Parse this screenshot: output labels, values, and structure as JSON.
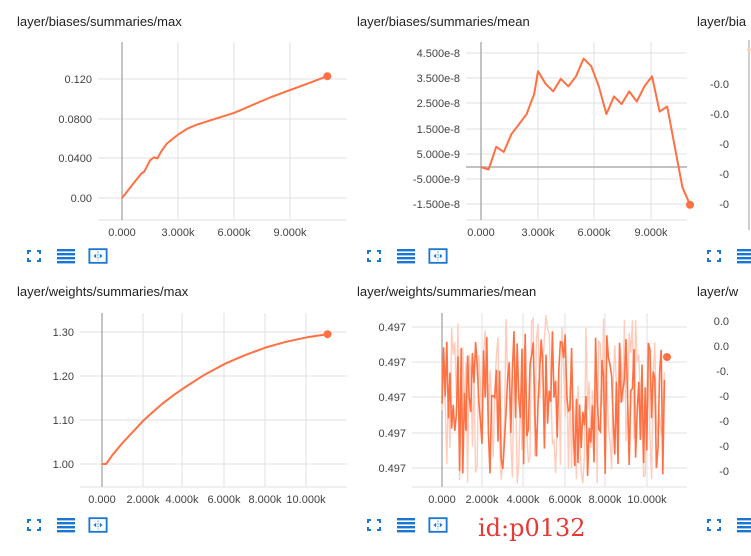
{
  "cards": [
    {
      "title": "layer/biases/summaries/max"
    },
    {
      "title": "layer/biases/summaries/mean"
    },
    {
      "title": "layer/bia"
    },
    {
      "title": "layer/weights/summaries/max"
    },
    {
      "title": "layer/weights/summaries/mean"
    },
    {
      "title": "layer/w"
    }
  ],
  "toolbar_icons": [
    "fullscreen-icon",
    "data-list-icon",
    "fit-domain-icon"
  ],
  "watermark": "id:p0132",
  "colors": {
    "series": "#ff7043",
    "series_light": "#ffccbc",
    "grid": "#e0e0e0",
    "axis": "#9e9e9e",
    "icon": "#1976d2"
  },
  "chart_data": [
    {
      "type": "line",
      "title": "layer/biases/summaries/max",
      "xticks": [
        "0.000",
        "3.000k",
        "6.000k",
        "9.000k"
      ],
      "yticks": [
        "0.00",
        "0.0400",
        "0.0800",
        "0.120"
      ],
      "xlim": [
        0,
        11000
      ],
      "ylim": [
        -0.01,
        0.135
      ],
      "x": [
        0,
        500,
        1000,
        1200,
        1500,
        1700,
        1900,
        2100,
        2400,
        3000,
        3500,
        4000,
        5000,
        6000,
        7000,
        8000,
        9000,
        10000,
        11000
      ],
      "y": [
        0.0,
        0.012,
        0.024,
        0.027,
        0.038,
        0.041,
        0.04,
        0.047,
        0.055,
        0.064,
        0.07,
        0.074,
        0.08,
        0.086,
        0.094,
        0.102,
        0.109,
        0.116,
        0.123
      ]
    },
    {
      "type": "line",
      "title": "layer/biases/summaries/mean",
      "xticks": [
        "0.000",
        "3.000k",
        "6.000k",
        "9.000k"
      ],
      "yticks": [
        "-1.500e-8",
        "-5.000e-9",
        "5.000e-9",
        "1.500e-8",
        "2.500e-8",
        "3.500e-8",
        "4.500e-8"
      ],
      "xlim": [
        0,
        11000
      ],
      "ylim": [
        -1.9e-08,
        4.9e-08
      ],
      "x": [
        0,
        400,
        800,
        1200,
        1600,
        2000,
        2400,
        2800,
        3000,
        3400,
        3800,
        4200,
        4600,
        5000,
        5400,
        5800,
        6200,
        6600,
        7000,
        7400,
        7800,
        8200,
        8600,
        9000,
        9400,
        9800,
        10200,
        10600,
        11000
      ],
      "y": [
        0,
        -1e-09,
        8e-09,
        6e-09,
        1.3e-08,
        1.7e-08,
        2.1e-08,
        2.9e-08,
        3.8e-08,
        3.3e-08,
        3e-08,
        3.5e-08,
        3.2e-08,
        3.6e-08,
        4.3e-08,
        4e-08,
        3.2e-08,
        2.1e-08,
        2.8e-08,
        2.5e-08,
        3e-08,
        2.6e-08,
        3.2e-08,
        3.6e-08,
        2.2e-08,
        2.4e-08,
        8e-09,
        -8e-09,
        -1.5e-08
      ]
    },
    {
      "type": "line",
      "title": "layer/weights/summaries/max",
      "xticks": [
        "0.000",
        "2.000k",
        "4.000k",
        "6.000k",
        "8.000k",
        "10.000k"
      ],
      "yticks": [
        "1.00",
        "1.10",
        "1.20",
        "1.30"
      ],
      "xlim": [
        -800,
        11500
      ],
      "ylim": [
        0.955,
        1.335
      ],
      "x": [
        0,
        200,
        500,
        1000,
        1500,
        2000,
        2500,
        3000,
        3500,
        4000,
        5000,
        6000,
        7000,
        8000,
        9000,
        10000,
        11000
      ],
      "y": [
        1.0,
        1.0,
        1.02,
        1.048,
        1.073,
        1.098,
        1.119,
        1.139,
        1.157,
        1.173,
        1.203,
        1.228,
        1.248,
        1.265,
        1.278,
        1.288,
        1.295
      ]
    },
    {
      "type": "line",
      "title": "layer/weights/summaries/mean",
      "xticks": [
        "0.000",
        "2.000k",
        "4.000k",
        "6.000k",
        "8.000k",
        "10.000k"
      ],
      "yticks": [
        "0.497",
        "0.497",
        "0.497",
        "0.497",
        "0.497"
      ],
      "xlim": [
        -800,
        11500
      ],
      "ylim": [
        0,
        1
      ],
      "noisy": true
    }
  ]
}
